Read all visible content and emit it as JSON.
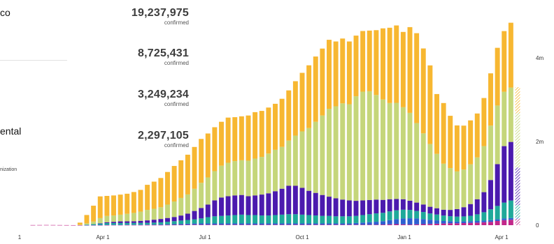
{
  "left_text": {
    "line1": "co",
    "line2": "ental",
    "line3": "nization"
  },
  "stats": [
    {
      "value": "19,237,975",
      "label": "confirmed"
    },
    {
      "value": "8,725,431",
      "label": "confirmed"
    },
    {
      "value": "3,249,234",
      "label": "confirmed"
    },
    {
      "value": "2,297,105",
      "label": "confirmed"
    }
  ],
  "colors": {
    "orange": "#F7B731",
    "lightgreen": "#C5D67A",
    "purple": "#4B1AAE",
    "teal": "#1FA99A",
    "blue": "#2E5FD0",
    "magenta": "#C2278A"
  },
  "chart_data": {
    "type": "bar",
    "stacked": true,
    "x_tick_labels": [
      "1",
      "Apr 1",
      "Jul 1",
      "Oct 1",
      "Jan 1",
      "Apr 1"
    ],
    "y_tick_labels": [
      "0",
      "2m",
      "4m"
    ],
    "ylim": [
      0,
      5200000
    ],
    "last_bar_partial": true,
    "series": [
      {
        "color": "magenta",
        "values": [
          3000,
          4000,
          5000,
          4000,
          3000,
          2000,
          1000,
          1000,
          1500,
          2000,
          3000,
          4000,
          5000,
          5000,
          5000,
          5000,
          5000,
          5000,
          6000,
          6000,
          7000,
          8000,
          9000,
          10000,
          12000,
          12000,
          12000,
          12000,
          12000,
          12000,
          12000,
          12000,
          12000,
          12000,
          12000,
          12000,
          12000,
          12000,
          12000,
          12000,
          12000,
          12000,
          12000,
          12000,
          12000,
          12000,
          12000,
          12000,
          12000,
          12000,
          12000,
          12000,
          15000,
          20000,
          25000,
          20000,
          15000,
          20000,
          25000,
          30000,
          35000,
          40000,
          45000,
          45000,
          50000,
          55000,
          60000,
          70000,
          80000,
          100000,
          120000,
          130000,
          150000
        ]
      },
      {
        "color": "blue",
        "values": [
          0,
          0,
          0,
          0,
          0,
          0,
          0,
          0,
          2000,
          4000,
          5000,
          6000,
          6000,
          6000,
          7000,
          8000,
          9000,
          10000,
          10000,
          12000,
          15000,
          18000,
          22000,
          25000,
          28000,
          30000,
          30000,
          30000,
          30000,
          30000,
          30000,
          30000,
          30000,
          30000,
          30000,
          30000,
          30000,
          30000,
          30000,
          30000,
          30000,
          30000,
          30000,
          30000,
          30000,
          30000,
          30000,
          30000,
          40000,
          50000,
          60000,
          70000,
          80000,
          100000,
          120000,
          140000,
          150000,
          140000,
          120000,
          100000,
          80000,
          60000,
          50000,
          40000,
          40000,
          40000,
          40000,
          40000,
          40000,
          40000,
          40000,
          40000,
          30000
        ]
      },
      {
        "color": "teal",
        "values": [
          0,
          0,
          0,
          0,
          0,
          0,
          0,
          0,
          10000,
          20000,
          30000,
          40000,
          40000,
          40000,
          40000,
          40000,
          40000,
          40000,
          45000,
          50000,
          60000,
          70000,
          80000,
          90000,
          100000,
          120000,
          150000,
          170000,
          180000,
          190000,
          200000,
          210000,
          200000,
          200000,
          190000,
          190000,
          200000,
          210000,
          220000,
          220000,
          210000,
          200000,
          190000,
          180000,
          180000,
          170000,
          170000,
          170000,
          170000,
          180000,
          190000,
          200000,
          200000,
          210000,
          210000,
          210000,
          200000,
          180000,
          170000,
          150000,
          140000,
          130000,
          120000,
          120000,
          120000,
          130000,
          160000,
          200000,
          260000,
          320000,
          380000,
          420000,
          300000
        ]
      },
      {
        "color": "purple",
        "values": [
          0,
          0,
          0,
          0,
          0,
          0,
          0,
          0,
          0,
          0,
          10000,
          20000,
          30000,
          40000,
          40000,
          40000,
          50000,
          60000,
          70000,
          80000,
          90000,
          100000,
          120000,
          150000,
          200000,
          250000,
          300000,
          380000,
          440000,
          460000,
          470000,
          470000,
          450000,
          470000,
          500000,
          530000,
          570000,
          620000,
          680000,
          680000,
          640000,
          580000,
          540000,
          500000,
          460000,
          430000,
          400000,
          380000,
          360000,
          350000,
          340000,
          330000,
          310000,
          290000,
          270000,
          250000,
          220000,
          200000,
          180000,
          160000,
          150000,
          140000,
          150000,
          180000,
          220000,
          280000,
          360000,
          480000,
          700000,
          1000000,
          1350000,
          1400000,
          900000
        ]
      },
      {
        "color": "lightgreen",
        "values": [
          0,
          0,
          0,
          0,
          0,
          0,
          0,
          10000,
          30000,
          60000,
          120000,
          150000,
          150000,
          160000,
          180000,
          200000,
          220000,
          250000,
          260000,
          280000,
          320000,
          370000,
          420000,
          460000,
          530000,
          600000,
          650000,
          700000,
          760000,
          800000,
          820000,
          830000,
          850000,
          880000,
          900000,
          950000,
          990000,
          1000000,
          1080000,
          1200000,
          1350000,
          1500000,
          1700000,
          1900000,
          2100000,
          2200000,
          2300000,
          2300000,
          2500000,
          2600000,
          2600000,
          2500000,
          2400000,
          2300000,
          2300000,
          2200000,
          2100000,
          1900000,
          1700000,
          1500000,
          1300000,
          1100000,
          1000000,
          900000,
          900000,
          950000,
          1000000,
          1100000,
          1300000,
          1400000,
          1300000,
          1300000,
          1300000
        ]
      },
      {
        "color": "orange",
        "values": [
          0,
          0,
          0,
          0,
          0,
          0,
          0,
          50000,
          200000,
          380000,
          520000,
          480000,
          480000,
          480000,
          480000,
          500000,
          520000,
          600000,
          650000,
          700000,
          780000,
          850000,
          900000,
          950000,
          1000000,
          1050000,
          1050000,
          1050000,
          1050000,
          1080000,
          1050000,
          1050000,
          1080000,
          1110000,
          1100000,
          1100000,
          1100000,
          1150000,
          1200000,
          1300000,
          1400000,
          1500000,
          1560000,
          1600000,
          1650000,
          1550000,
          1550000,
          1500000,
          1450000,
          1450000,
          1450000,
          1550000,
          1700000,
          1800000,
          1850000,
          1800000,
          2050000,
          2150000,
          2030000,
          1880000,
          1430000,
          1450000,
          1250000,
          1100000,
          1050000,
          1050000,
          1050000,
          1150000,
          1250000,
          1380000,
          1450000,
          1550000,
          620000
        ]
      }
    ]
  }
}
